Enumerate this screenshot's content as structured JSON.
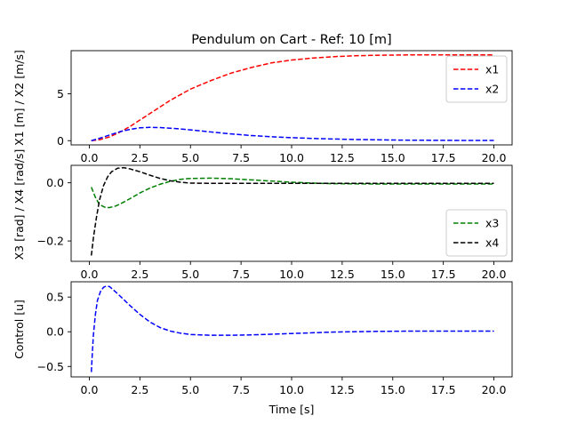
{
  "chart_data": [
    {
      "type": "line",
      "title": "Pendulum on Cart - Ref: 10 [m]",
      "xlabel": "",
      "ylabel": "X1 [m] / X2 [m/s]",
      "xlim": [
        -0.9,
        20.9
      ],
      "ylim": [
        -0.45,
        9.6
      ],
      "xticks": [
        0.0,
        2.5,
        5.0,
        7.5,
        10.0,
        12.5,
        15.0,
        17.5,
        20.0
      ],
      "xtick_labels": [
        "0.0",
        "2.5",
        "5.0",
        "7.5",
        "10.0",
        "12.5",
        "15.0",
        "17.5",
        "20.0"
      ],
      "yticks": [
        0,
        5
      ],
      "ytick_labels": [
        "0",
        "5"
      ],
      "legend": "top-right",
      "series": [
        {
          "name": "x1",
          "color": "#ff0000",
          "style": "dashed",
          "x": [
            0.1,
            0.5,
            1.0,
            1.5,
            2.0,
            2.5,
            3.0,
            3.5,
            4.0,
            4.5,
            5.0,
            6.0,
            7.0,
            8.0,
            9.0,
            10.0,
            11.0,
            12.0,
            13.0,
            14.0,
            15.0,
            16.0,
            17.0,
            18.0,
            19.0,
            20.0
          ],
          "values": [
            0.0,
            0.1,
            0.4,
            0.9,
            1.5,
            2.2,
            2.9,
            3.6,
            4.3,
            4.9,
            5.5,
            6.4,
            7.2,
            7.8,
            8.3,
            8.6,
            8.8,
            8.95,
            9.05,
            9.1,
            9.13,
            9.15,
            9.15,
            9.15,
            9.15,
            9.15
          ]
        },
        {
          "name": "x2",
          "color": "#0000ff",
          "style": "dashed",
          "x": [
            0.1,
            0.5,
            1.0,
            1.5,
            2.0,
            2.5,
            3.0,
            3.5,
            4.0,
            4.5,
            5.0,
            6.0,
            7.0,
            8.0,
            9.0,
            10.0,
            11.0,
            12.0,
            13.0,
            14.0,
            15.0,
            16.0,
            17.0,
            18.0,
            19.0,
            20.0
          ],
          "values": [
            0.0,
            0.25,
            0.6,
            0.95,
            1.2,
            1.37,
            1.42,
            1.4,
            1.33,
            1.25,
            1.15,
            0.93,
            0.72,
            0.55,
            0.42,
            0.32,
            0.24,
            0.18,
            0.13,
            0.1,
            0.07,
            0.05,
            0.04,
            0.03,
            0.02,
            0.02
          ]
        }
      ]
    },
    {
      "type": "line",
      "title": "",
      "xlabel": "",
      "ylabel": "X3 [rad] / X4 [rad/s]",
      "xlim": [
        -0.9,
        20.9
      ],
      "ylim": [
        -0.27,
        0.06
      ],
      "xticks": [
        0.0,
        2.5,
        5.0,
        7.5,
        10.0,
        12.5,
        15.0,
        17.5,
        20.0
      ],
      "xtick_labels": [
        "0.0",
        "2.5",
        "5.0",
        "7.5",
        "10.0",
        "12.5",
        "15.0",
        "17.5",
        "20.0"
      ],
      "yticks": [
        0.0,
        -0.2
      ],
      "ytick_labels": [
        "0.0",
        "−0.2"
      ],
      "legend": "lower-right",
      "series": [
        {
          "name": "x3",
          "color": "#008000",
          "style": "dashed",
          "x": [
            0.1,
            0.3,
            0.5,
            0.8,
            1.0,
            1.3,
            1.6,
            2.0,
            2.5,
            3.0,
            3.5,
            4.0,
            4.5,
            5.0,
            6.0,
            7.0,
            8.0,
            9.0,
            10.0,
            11.0,
            12.0,
            14.0,
            16.0,
            18.0,
            20.0
          ],
          "values": [
            -0.015,
            -0.05,
            -0.075,
            -0.085,
            -0.085,
            -0.08,
            -0.07,
            -0.055,
            -0.035,
            -0.018,
            -0.005,
            0.005,
            0.012,
            0.015,
            0.016,
            0.014,
            0.01,
            0.006,
            0.002,
            -0.001,
            -0.003,
            -0.004,
            -0.004,
            -0.004,
            -0.004
          ]
        },
        {
          "name": "x4",
          "color": "#000000",
          "style": "dashed",
          "x": [
            0.1,
            0.2,
            0.35,
            0.5,
            0.7,
            0.9,
            1.1,
            1.4,
            1.7,
            2.0,
            2.5,
            3.0,
            3.5,
            4.0,
            4.5,
            5.0,
            6.0,
            7.0,
            8.0,
            9.0,
            10.0,
            12.0,
            14.0,
            16.0,
            18.0,
            20.0
          ],
          "values": [
            -0.25,
            -0.19,
            -0.12,
            -0.06,
            -0.01,
            0.02,
            0.038,
            0.05,
            0.052,
            0.048,
            0.038,
            0.026,
            0.015,
            0.007,
            0.002,
            -0.001,
            -0.002,
            -0.002,
            -0.002,
            -0.002,
            -0.002,
            -0.002,
            -0.002,
            -0.002,
            -0.002,
            -0.002
          ]
        }
      ]
    },
    {
      "type": "line",
      "title": "",
      "xlabel": "Time [s]",
      "ylabel": "Control [u]",
      "xlim": [
        -0.9,
        20.9
      ],
      "ylim": [
        -0.65,
        0.72
      ],
      "xticks": [
        0.0,
        2.5,
        5.0,
        7.5,
        10.0,
        12.5,
        15.0,
        17.5,
        20.0
      ],
      "xtick_labels": [
        "0.0",
        "2.5",
        "5.0",
        "7.5",
        "10.0",
        "12.5",
        "15.0",
        "17.5",
        "20.0"
      ],
      "yticks": [
        0.5,
        0.0,
        -0.5
      ],
      "ytick_labels": [
        "0.5",
        "0.0",
        "−0.5"
      ],
      "legend": "none",
      "series": [
        {
          "color": "#0000ff",
          "style": "dashed",
          "x": [
            0.1,
            0.15,
            0.2,
            0.3,
            0.4,
            0.55,
            0.7,
            0.85,
            1.0,
            1.2,
            1.5,
            2.0,
            2.5,
            3.0,
            3.5,
            4.0,
            4.5,
            5.0,
            6.0,
            7.0,
            8.0,
            9.0,
            10.0,
            11.0,
            12.0,
            14.0,
            16.0,
            18.0,
            20.0
          ],
          "values": [
            -0.58,
            -0.3,
            -0.05,
            0.25,
            0.45,
            0.58,
            0.64,
            0.66,
            0.65,
            0.6,
            0.52,
            0.38,
            0.25,
            0.14,
            0.06,
            0.01,
            -0.02,
            -0.04,
            -0.05,
            -0.05,
            -0.045,
            -0.035,
            -0.025,
            -0.015,
            -0.005,
            0.005,
            0.01,
            0.01,
            0.01
          ]
        }
      ]
    }
  ]
}
